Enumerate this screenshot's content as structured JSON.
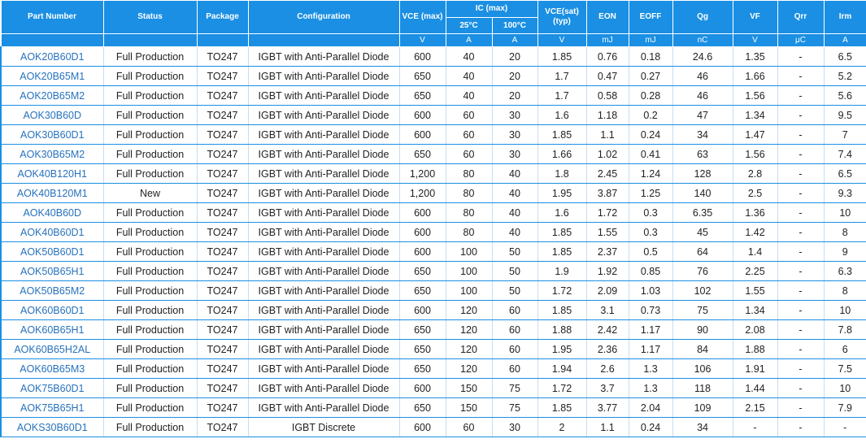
{
  "header": {
    "part_number": "Part Number",
    "status": "Status",
    "package": "Package",
    "configuration": "Configuration",
    "vce_max": "VCE (max)",
    "ic_max": "IC (max)",
    "ic_25": "25°C",
    "ic_100": "100°C",
    "vce_sat": "VCE(sat)\n(typ)",
    "eon": "EON",
    "eoff": "EOFF",
    "qg": "Qg",
    "vf": "VF",
    "qrr": "Qrr",
    "irm": "Irm"
  },
  "units": {
    "vce_max": "V",
    "ic_25": "A",
    "ic_100": "A",
    "vce_sat": "V",
    "eon": "mJ",
    "eoff": "mJ",
    "qg": "nC",
    "vf": "V",
    "qrr": "μC",
    "irm": "A"
  },
  "rows": [
    {
      "part": "AOK20B60D1",
      "status": "Full Production",
      "package": "TO247",
      "config": "IGBT with Anti-Parallel Diode",
      "vce_max": "600",
      "ic25": "40",
      "ic100": "20",
      "vcesat": "1.85",
      "eon": "0.76",
      "eoff": "0.18",
      "qg": "24.6",
      "vf": "1.35",
      "qrr": "-",
      "irm": "6.5"
    },
    {
      "part": "AOK20B65M1",
      "status": "Full Production",
      "package": "TO247",
      "config": "IGBT with Anti-Parallel Diode",
      "vce_max": "650",
      "ic25": "40",
      "ic100": "20",
      "vcesat": "1.7",
      "eon": "0.47",
      "eoff": "0.27",
      "qg": "46",
      "vf": "1.66",
      "qrr": "-",
      "irm": "5.2"
    },
    {
      "part": "AOK20B65M2",
      "status": "Full Production",
      "package": "TO247",
      "config": "IGBT with Anti-Parallel Diode",
      "vce_max": "650",
      "ic25": "40",
      "ic100": "20",
      "vcesat": "1.7",
      "eon": "0.58",
      "eoff": "0.28",
      "qg": "46",
      "vf": "1.56",
      "qrr": "-",
      "irm": "5.6"
    },
    {
      "part": "AOK30B60D",
      "status": "Full Production",
      "package": "TO247",
      "config": "IGBT with Anti-Parallel Diode",
      "vce_max": "600",
      "ic25": "60",
      "ic100": "30",
      "vcesat": "1.6",
      "eon": "1.18",
      "eoff": "0.2",
      "qg": "47",
      "vf": "1.34",
      "qrr": "-",
      "irm": "9.5"
    },
    {
      "part": "AOK30B60D1",
      "status": "Full Production",
      "package": "TO247",
      "config": "IGBT with Anti-Parallel Diode",
      "vce_max": "600",
      "ic25": "60",
      "ic100": "30",
      "vcesat": "1.85",
      "eon": "1.1",
      "eoff": "0.24",
      "qg": "34",
      "vf": "1.47",
      "qrr": "-",
      "irm": "7"
    },
    {
      "part": "AOK30B65M2",
      "status": "Full Production",
      "package": "TO247",
      "config": "IGBT with Anti-Parallel Diode",
      "vce_max": "650",
      "ic25": "60",
      "ic100": "30",
      "vcesat": "1.66",
      "eon": "1.02",
      "eoff": "0.41",
      "qg": "63",
      "vf": "1.56",
      "qrr": "-",
      "irm": "7.4"
    },
    {
      "part": "AOK40B120H1",
      "status": "Full Production",
      "package": "TO247",
      "config": "IGBT with Anti-Parallel Diode",
      "vce_max": "1,200",
      "ic25": "80",
      "ic100": "40",
      "vcesat": "1.8",
      "eon": "2.45",
      "eoff": "1.24",
      "qg": "128",
      "vf": "2.8",
      "qrr": "-",
      "irm": "6.5"
    },
    {
      "part": "AOK40B120M1",
      "status": "New",
      "package": "TO247",
      "config": "IGBT with Anti-Parallel Diode",
      "vce_max": "1,200",
      "ic25": "80",
      "ic100": "40",
      "vcesat": "1.95",
      "eon": "3.87",
      "eoff": "1.25",
      "qg": "140",
      "vf": "2.5",
      "qrr": "-",
      "irm": "9.3"
    },
    {
      "part": "AOK40B60D",
      "status": "Full Production",
      "package": "TO247",
      "config": "IGBT with Anti-Parallel Diode",
      "vce_max": "600",
      "ic25": "80",
      "ic100": "40",
      "vcesat": "1.6",
      "eon": "1.72",
      "eoff": "0.3",
      "qg": "6.35",
      "vf": "1.36",
      "qrr": "-",
      "irm": "10"
    },
    {
      "part": "AOK40B60D1",
      "status": "Full Production",
      "package": "TO247",
      "config": "IGBT with Anti-Parallel Diode",
      "vce_max": "600",
      "ic25": "80",
      "ic100": "40",
      "vcesat": "1.85",
      "eon": "1.55",
      "eoff": "0.3",
      "qg": "45",
      "vf": "1.42",
      "qrr": "-",
      "irm": "8"
    },
    {
      "part": "AOK50B60D1",
      "status": "Full Production",
      "package": "TO247",
      "config": "IGBT with Anti-Parallel Diode",
      "vce_max": "600",
      "ic25": "100",
      "ic100": "50",
      "vcesat": "1.85",
      "eon": "2.37",
      "eoff": "0.5",
      "qg": "64",
      "vf": "1.4",
      "qrr": "-",
      "irm": "9"
    },
    {
      "part": "AOK50B65H1",
      "status": "Full Production",
      "package": "TO247",
      "config": "IGBT with Anti-Parallel Diode",
      "vce_max": "650",
      "ic25": "100",
      "ic100": "50",
      "vcesat": "1.9",
      "eon": "1.92",
      "eoff": "0.85",
      "qg": "76",
      "vf": "2.25",
      "qrr": "-",
      "irm": "6.3"
    },
    {
      "part": "AOK50B65M2",
      "status": "Full Production",
      "package": "TO247",
      "config": "IGBT with Anti-Parallel Diode",
      "vce_max": "650",
      "ic25": "100",
      "ic100": "50",
      "vcesat": "1.72",
      "eon": "2.09",
      "eoff": "1.03",
      "qg": "102",
      "vf": "1.55",
      "qrr": "-",
      "irm": "8"
    },
    {
      "part": "AOK60B60D1",
      "status": "Full Production",
      "package": "TO247",
      "config": "IGBT with Anti-Parallel Diode",
      "vce_max": "600",
      "ic25": "120",
      "ic100": "60",
      "vcesat": "1.85",
      "eon": "3.1",
      "eoff": "0.73",
      "qg": "75",
      "vf": "1.34",
      "qrr": "-",
      "irm": "10"
    },
    {
      "part": "AOK60B65H1",
      "status": "Full Production",
      "package": "TO247",
      "config": "IGBT with Anti-Parallel Diode",
      "vce_max": "650",
      "ic25": "120",
      "ic100": "60",
      "vcesat": "1.88",
      "eon": "2.42",
      "eoff": "1.17",
      "qg": "90",
      "vf": "2.08",
      "qrr": "-",
      "irm": "7.8"
    },
    {
      "part": "AOK60B65H2AL",
      "status": "Full Production",
      "package": "TO247",
      "config": "IGBT with Anti-Parallel Diode",
      "vce_max": "650",
      "ic25": "120",
      "ic100": "60",
      "vcesat": "1.95",
      "eon": "2.36",
      "eoff": "1.17",
      "qg": "84",
      "vf": "1.88",
      "qrr": "-",
      "irm": "6"
    },
    {
      "part": "AOK60B65M3",
      "status": "Full Production",
      "package": "TO247",
      "config": "IGBT with Anti-Parallel Diode",
      "vce_max": "650",
      "ic25": "120",
      "ic100": "60",
      "vcesat": "1.94",
      "eon": "2.6",
      "eoff": "1.3",
      "qg": "106",
      "vf": "1.91",
      "qrr": "-",
      "irm": "7.5"
    },
    {
      "part": "AOK75B60D1",
      "status": "Full Production",
      "package": "TO247",
      "config": "IGBT with Anti-Parallel Diode",
      "vce_max": "600",
      "ic25": "150",
      "ic100": "75",
      "vcesat": "1.72",
      "eon": "3.7",
      "eoff": "1.3",
      "qg": "118",
      "vf": "1.44",
      "qrr": "-",
      "irm": "10"
    },
    {
      "part": "AOK75B65H1",
      "status": "Full Production",
      "package": "TO247",
      "config": "IGBT with Anti-Parallel Diode",
      "vce_max": "650",
      "ic25": "150",
      "ic100": "75",
      "vcesat": "1.85",
      "eon": "3.77",
      "eoff": "2.04",
      "qg": "109",
      "vf": "2.15",
      "qrr": "-",
      "irm": "7.9"
    },
    {
      "part": "AOKS30B60D1",
      "status": "Full Production",
      "package": "TO247",
      "config": "IGBT Discrete",
      "vce_max": "600",
      "ic25": "60",
      "ic100": "30",
      "vcesat": "2",
      "eon": "1.1",
      "eoff": "0.24",
      "qg": "34",
      "vf": "-",
      "qrr": "-",
      "irm": "-"
    }
  ]
}
